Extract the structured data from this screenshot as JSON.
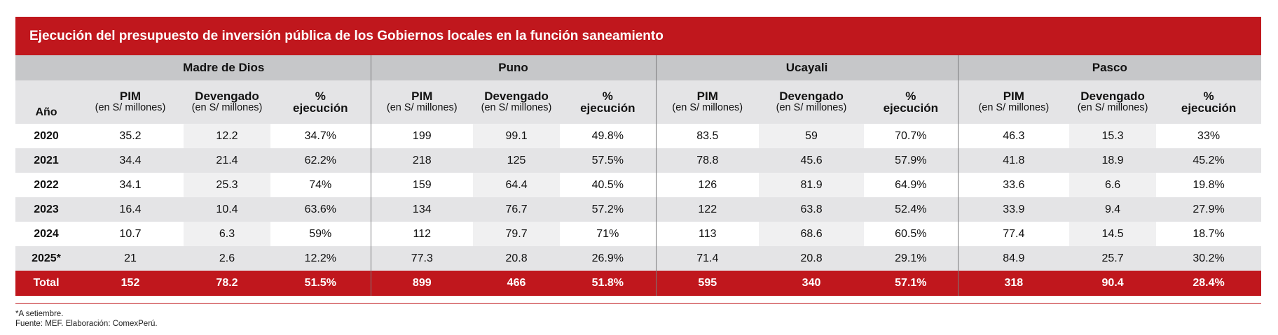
{
  "title": "Ejecución del presupuesto de inversión pública de los Gobiernos locales en la función saneamiento",
  "regions": [
    "Madre de Dios",
    "Puno",
    "Ucayali",
    "Pasco"
  ],
  "headers": {
    "year": "Año",
    "pim": "PIM",
    "pim_unit": "(en S/ millones)",
    "devengado": "Devengado",
    "devengado_unit": "(en S/ millones)",
    "pct_top": "%",
    "pct_bottom": "ejecución"
  },
  "rows": [
    {
      "year": "2020",
      "values": [
        "35.2",
        "12.2",
        "34.7%",
        "199",
        "99.1",
        "49.8%",
        "83.5",
        "59",
        "70.7%",
        "46.3",
        "15.3",
        "33%"
      ]
    },
    {
      "year": "2021",
      "values": [
        "34.4",
        "21.4",
        "62.2%",
        "218",
        "125",
        "57.5%",
        "78.8",
        "45.6",
        "57.9%",
        "41.8",
        "18.9",
        "45.2%"
      ]
    },
    {
      "year": "2022",
      "values": [
        "34.1",
        "25.3",
        "74%",
        "159",
        "64.4",
        "40.5%",
        "126",
        "81.9",
        "64.9%",
        "33.6",
        "6.6",
        "19.8%"
      ]
    },
    {
      "year": "2023",
      "values": [
        "16.4",
        "10.4",
        "63.6%",
        "134",
        "76.7",
        "57.2%",
        "122",
        "63.8",
        "52.4%",
        "33.9",
        "9.4",
        "27.9%"
      ]
    },
    {
      "year": "2024",
      "values": [
        "10.7",
        "6.3",
        "59%",
        "112",
        "79.7",
        "71%",
        "113",
        "68.6",
        "60.5%",
        "77.4",
        "14.5",
        "18.7%"
      ]
    },
    {
      "year": "2025*",
      "values": [
        "21",
        "2.6",
        "12.2%",
        "77.3",
        "20.8",
        "26.9%",
        "71.4",
        "20.8",
        "29.1%",
        "84.9",
        "25.7",
        "30.2%"
      ]
    }
  ],
  "total": {
    "label": "Total",
    "values": [
      "152",
      "78.2",
      "51.5%",
      "899",
      "466",
      "51.8%",
      "595",
      "340",
      "57.1%",
      "318",
      "90.4",
      "28.4%"
    ]
  },
  "notes": {
    "footnote": "*A setiembre.",
    "source": "Fuente: MEF. Elaboración: ComexPerú."
  },
  "colors": {
    "accent": "#c0171d",
    "group_header": "#c6c7c9",
    "column_header": "#e4e4e6"
  }
}
